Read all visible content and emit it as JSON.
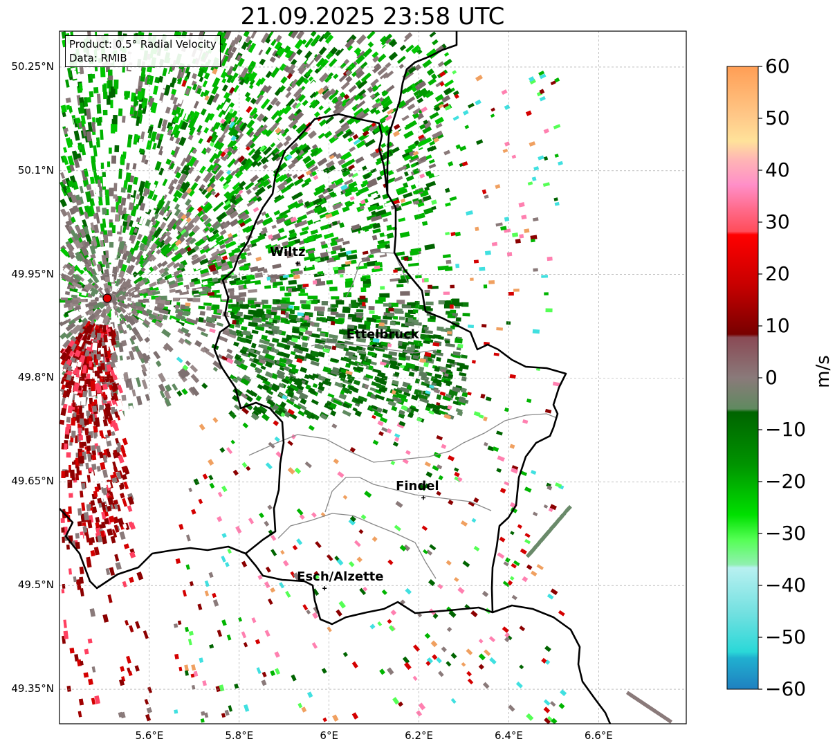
{
  "title": "21.09.2025 23:58 UTC",
  "info": {
    "product": "Product: 0.5° Radial Velocity",
    "data": "Data: RMIB"
  },
  "axes": {
    "lat_labels": [
      "50.25°N",
      "50.1°N",
      "49.95°N",
      "49.8°N",
      "49.65°N",
      "49.5°N",
      "49.35°N"
    ],
    "lon_labels": [
      "5.6°E",
      "5.8°E",
      "6°E",
      "6.2°E",
      "6.4°E",
      "6.6°E"
    ],
    "grid": true
  },
  "cities": [
    {
      "name": "Wiltz",
      "lon": 5.93,
      "lat": 49.966
    },
    {
      "name": "Ettelbruck",
      "lon": 6.1,
      "lat": 49.847
    },
    {
      "name": "Findel",
      "lon": 6.21,
      "lat": 49.627
    },
    {
      "name": "Esch/Alzette",
      "lon": 5.99,
      "lat": 49.496
    }
  ],
  "radar_site": {
    "lon": 5.505,
    "lat": 49.914,
    "color": "#e00000"
  },
  "colorbar": {
    "label": "m/s",
    "ticks": [
      "60",
      "50",
      "40",
      "30",
      "20",
      "10",
      "0",
      "−10",
      "−20",
      "−30",
      "−40",
      "−50",
      "−60"
    ],
    "min": -60,
    "max": 60
  },
  "colors": {
    "strong_green": "#00b400",
    "dark_green": "#006400",
    "gray": "#8a7a7a",
    "red": "#d40000",
    "dark_red": "#8b0000",
    "border": "#000000"
  }
}
